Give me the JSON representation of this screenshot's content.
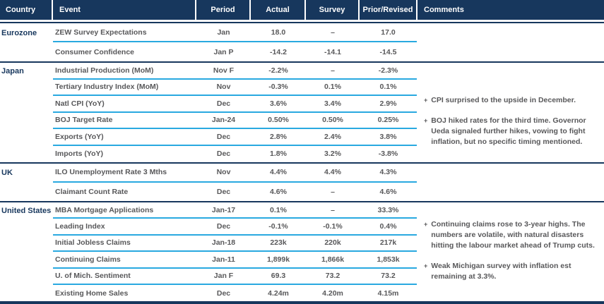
{
  "title": "Weekly economic data review table",
  "colors": {
    "header_navy": "#17375d",
    "row_separator_cyan": "#29a9e0",
    "body_text_gray": "#58585a",
    "header_text": "#ffffff"
  },
  "bullet": "+",
  "header": {
    "columns": [
      "Country",
      "Event",
      "Period",
      "Actual",
      "Survey",
      "Prior/Revised",
      "Comments"
    ]
  },
  "chart_data": {
    "type": "table",
    "columns": [
      "Country",
      "Event",
      "Period",
      "Actual",
      "Survey",
      "Prior/Revised",
      "Comments"
    ]
  },
  "sections": [
    {
      "country": "Eurozone",
      "rows": [
        {
          "event": "ZEW Survey Expectations",
          "period": "Jan",
          "actual": "18.0",
          "survey": "–",
          "prior": "17.0"
        },
        {
          "event": "Consumer Confidence",
          "period": "Jan P",
          "actual": "-14.2",
          "survey": "-14.1",
          "prior": "-14.5"
        }
      ],
      "comments": []
    },
    {
      "country": "Japan",
      "rows": [
        {
          "event": "Industrial Production (MoM)",
          "period": "Nov F",
          "actual": "-2.2%",
          "survey": "–",
          "prior": "-2.3%"
        },
        {
          "event": "Tertiary Industry Index (MoM)",
          "period": "Nov",
          "actual": "-0.3%",
          "survey": "0.1%",
          "prior": "0.1%"
        },
        {
          "event": "Natl CPI (YoY)",
          "period": "Dec",
          "actual": "3.6%",
          "survey": "3.4%",
          "prior": "2.9%"
        },
        {
          "event": "BOJ Target Rate",
          "period": "Jan-24",
          "actual": "0.50%",
          "survey": "0.50%",
          "prior": "0.25%"
        },
        {
          "event": "Exports (YoY)",
          "period": "Dec",
          "actual": "2.8%",
          "survey": "2.4%",
          "prior": "3.8%"
        },
        {
          "event": "Imports (YoY)",
          "period": "Dec",
          "actual": "1.8%",
          "survey": "3.2%",
          "prior": "-3.8%"
        }
      ],
      "comments": [
        "CPI surprised to the upside in December.",
        "BOJ hiked rates for the third time. Governor Ueda signaled further hikes, vowing to fight inflation, but no specific timing mentioned."
      ]
    },
    {
      "country": "UK",
      "rows": [
        {
          "event": "ILO Unemployment Rate 3 Mths",
          "period": "Nov",
          "actual": "4.4%",
          "survey": "4.4%",
          "prior": "4.3%"
        },
        {
          "event": "Claimant Count Rate",
          "period": "Dec",
          "actual": "4.6%",
          "survey": "–",
          "prior": "4.6%"
        }
      ],
      "comments": []
    },
    {
      "country": "United States",
      "rows": [
        {
          "event": "MBA Mortgage Applications",
          "period": "Jan-17",
          "actual": "0.1%",
          "survey": "–",
          "prior": "33.3%"
        },
        {
          "event": "Leading Index",
          "period": "Dec",
          "actual": "-0.1%",
          "survey": "-0.1%",
          "prior": "0.4%"
        },
        {
          "event": "Initial Jobless Claims",
          "period": "Jan-18",
          "actual": "223k",
          "survey": "220k",
          "prior": "217k"
        },
        {
          "event": "Continuing Claims",
          "period": "Jan-11",
          "actual": "1,899k",
          "survey": "1,866k",
          "prior": "1,853k"
        },
        {
          "event": "U. of Mich. Sentiment",
          "period": "Jan F",
          "actual": "69.3",
          "survey": "73.2",
          "prior": "73.2"
        },
        {
          "event": "Existing Home Sales",
          "period": "Dec",
          "actual": "4.24m",
          "survey": "4.20m",
          "prior": "4.15m"
        }
      ],
      "comments": [
        "Continuing claims rose to 3-year highs. The numbers are volatile, with natural disasters hitting the labour market ahead of Trump cuts.",
        "Weak Michigan survey with inflation est remaining at 3.3%."
      ]
    }
  ]
}
